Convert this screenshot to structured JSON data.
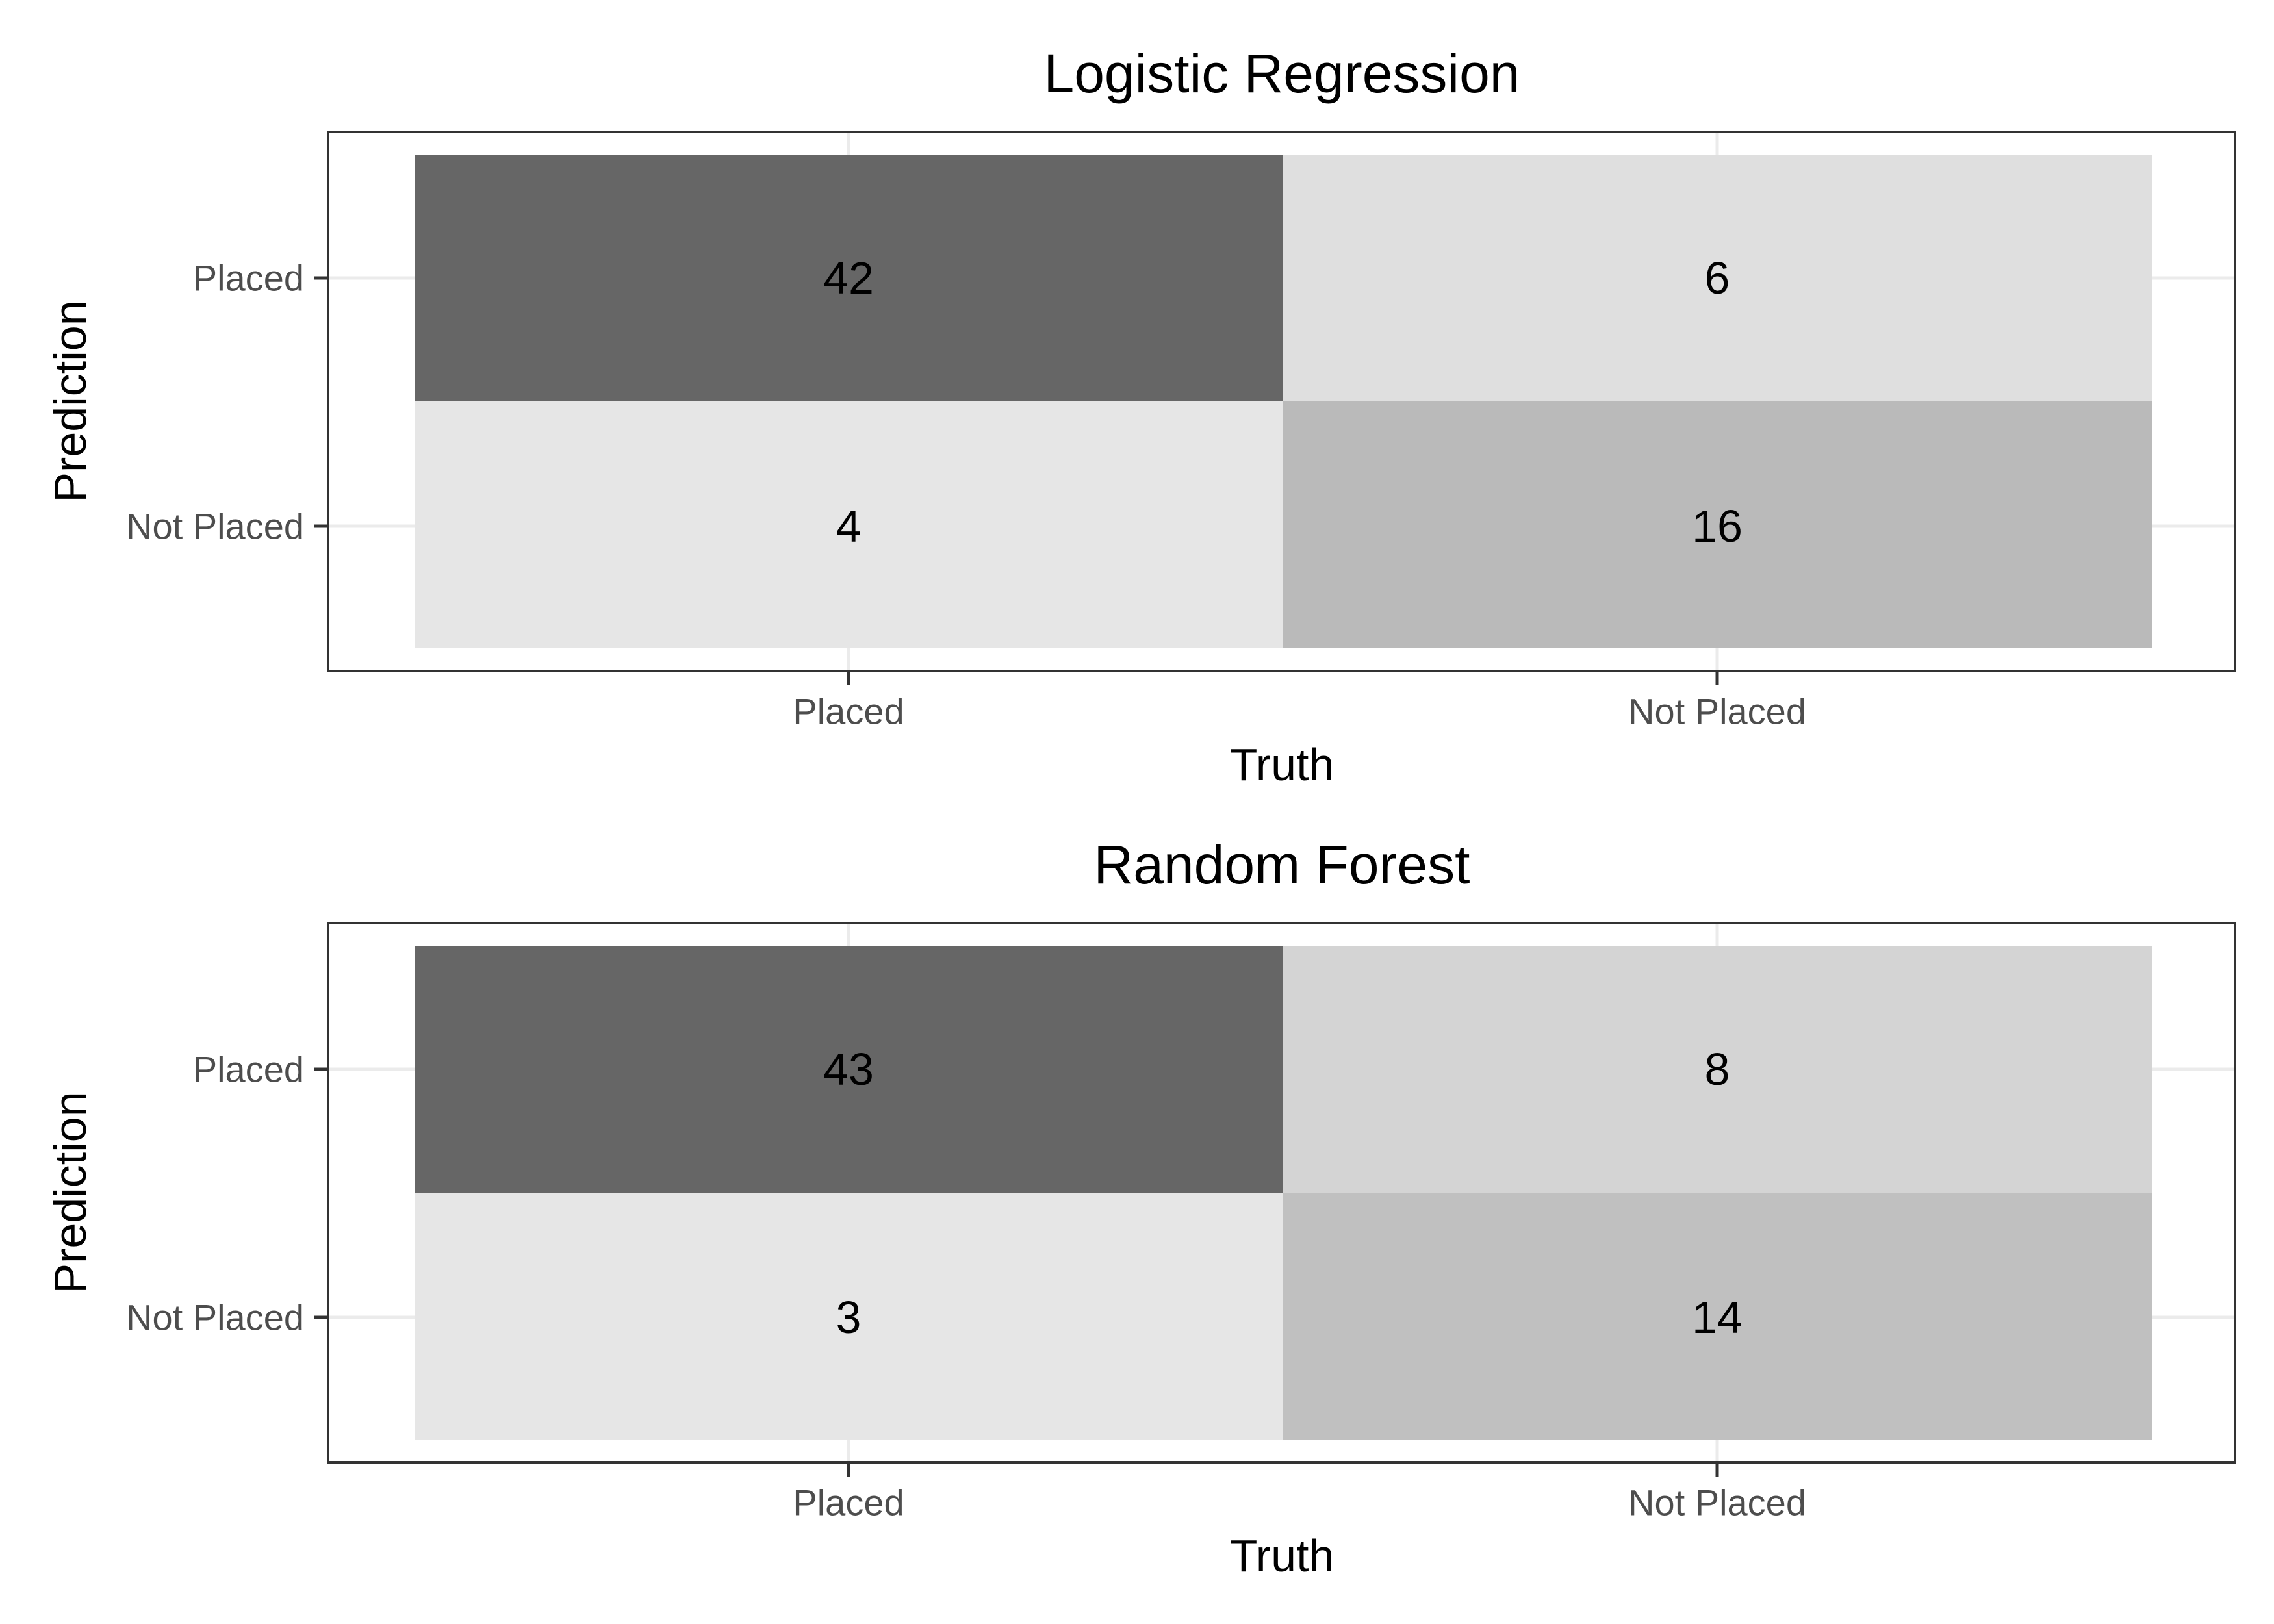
{
  "chart_data": [
    {
      "type": "heatmap",
      "title": "Logistic Regression",
      "xlabel": "Truth",
      "ylabel": "Prediction",
      "x_categories": [
        "Placed",
        "Not Placed"
      ],
      "y_categories": [
        "Placed",
        "Not Placed"
      ],
      "cells": [
        {
          "truth": "Placed",
          "prediction": "Placed",
          "value": 42,
          "label": "42",
          "color": "#666666"
        },
        {
          "truth": "Not Placed",
          "prediction": "Placed",
          "value": 6,
          "label": "6",
          "color": "#dfdfdf"
        },
        {
          "truth": "Placed",
          "prediction": "Not Placed",
          "value": 4,
          "label": "4",
          "color": "#e6e6e6"
        },
        {
          "truth": "Not Placed",
          "prediction": "Not Placed",
          "value": 16,
          "label": "16",
          "color": "#bababa"
        }
      ],
      "grid": true,
      "legend": "none"
    },
    {
      "type": "heatmap",
      "title": "Random Forest",
      "xlabel": "Truth",
      "ylabel": "Prediction",
      "x_categories": [
        "Placed",
        "Not Placed"
      ],
      "y_categories": [
        "Placed",
        "Not Placed"
      ],
      "cells": [
        {
          "truth": "Placed",
          "prediction": "Placed",
          "value": 43,
          "label": "43",
          "color": "#666666"
        },
        {
          "truth": "Not Placed",
          "prediction": "Placed",
          "value": 8,
          "label": "8",
          "color": "#d4d4d4"
        },
        {
          "truth": "Placed",
          "prediction": "Not Placed",
          "value": 3,
          "label": "3",
          "color": "#e6e6e6"
        },
        {
          "truth": "Not Placed",
          "prediction": "Not Placed",
          "value": 14,
          "label": "14",
          "color": "#c0c0c0"
        }
      ],
      "grid": true,
      "legend": "none"
    }
  ],
  "colors": {
    "panel_border": "#333333",
    "gridline": "#ebebeb",
    "tick_text": "#4d4d4d"
  }
}
